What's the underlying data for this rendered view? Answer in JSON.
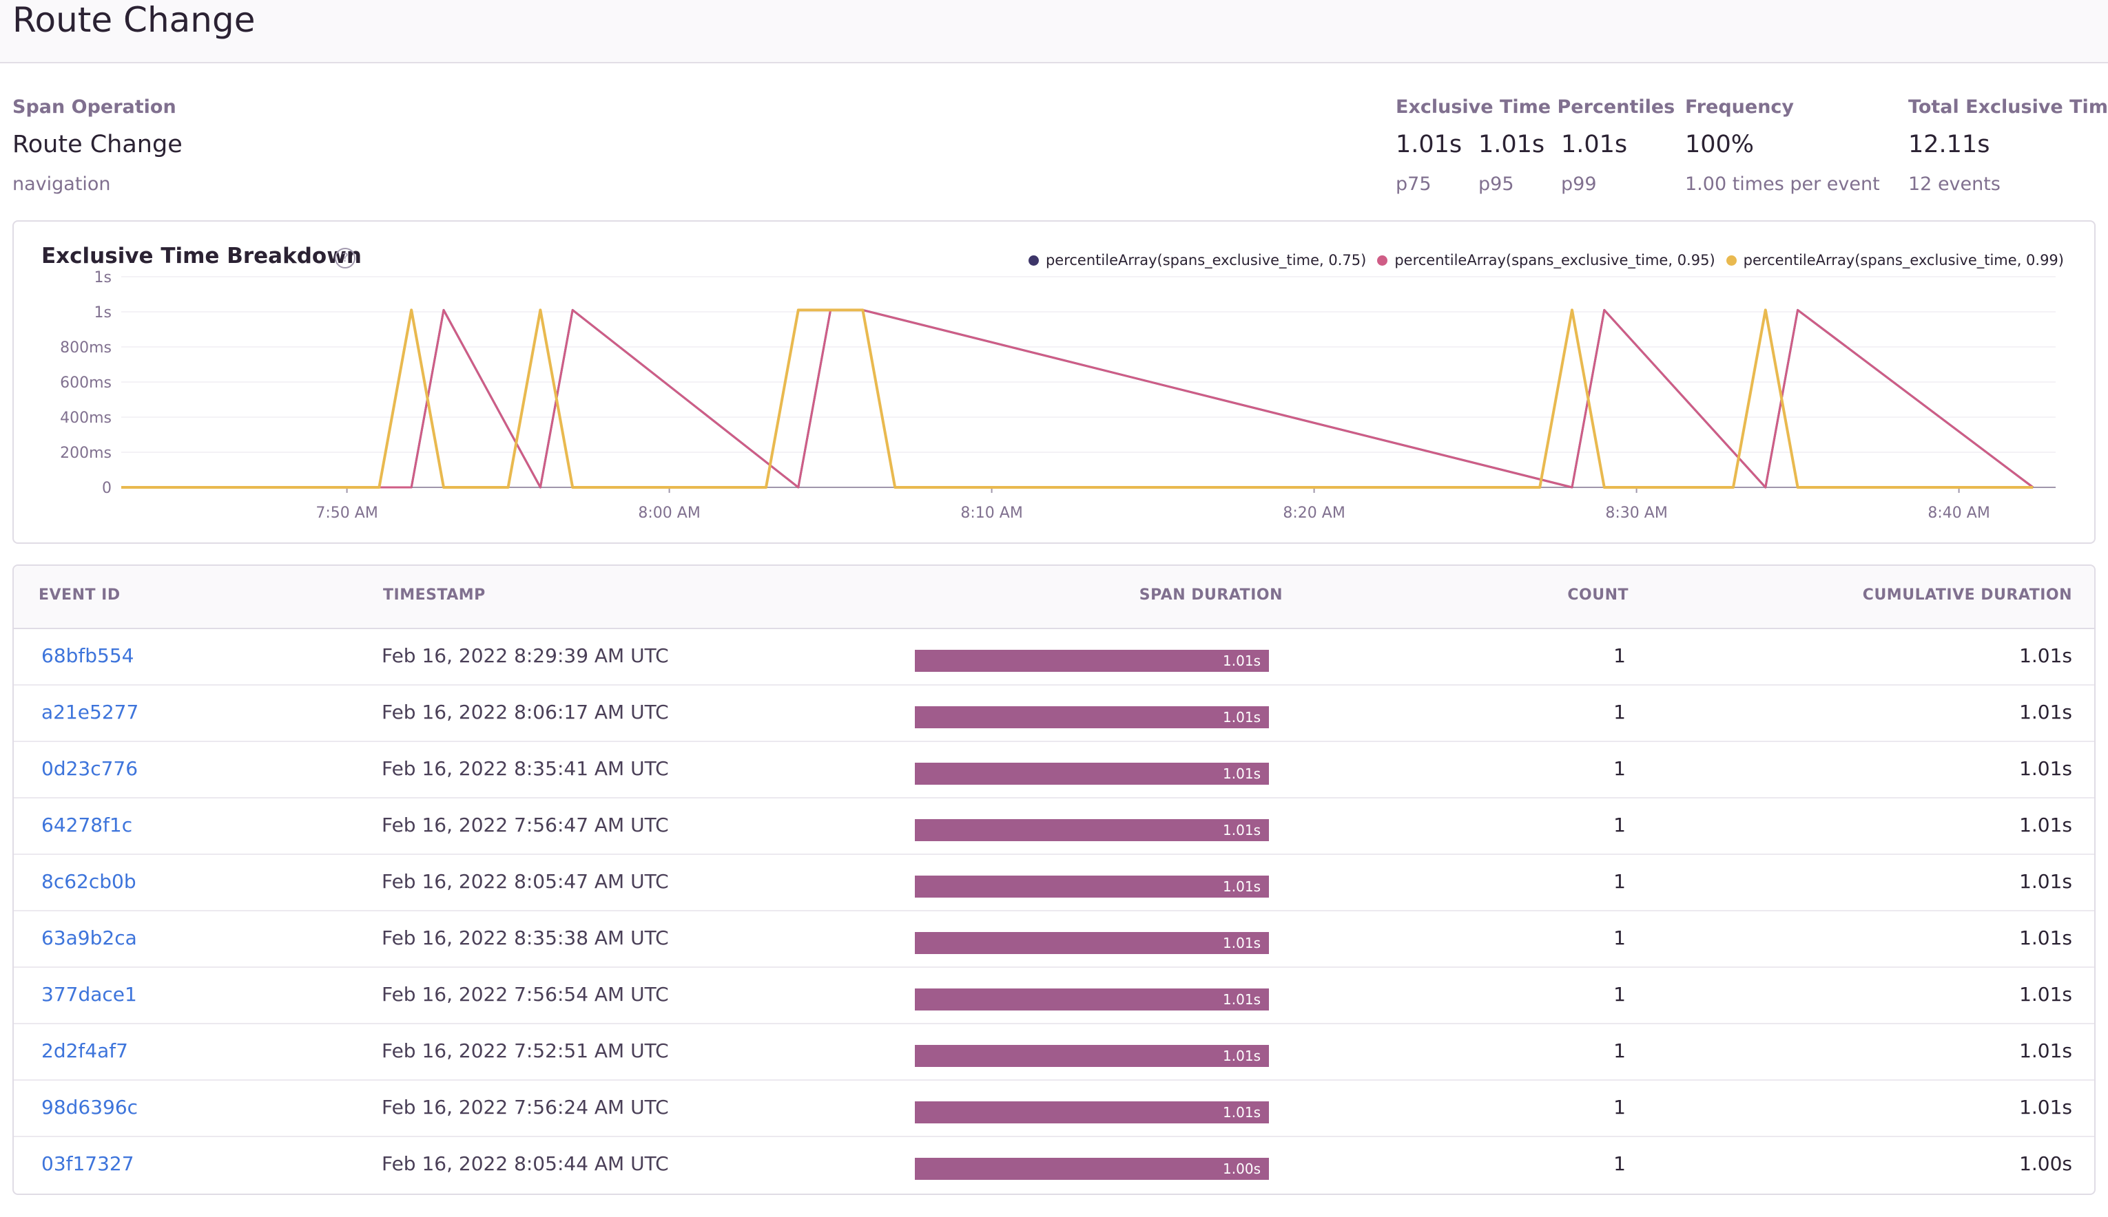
{
  "page": {
    "title": "Route Change"
  },
  "summary": {
    "span_operation": {
      "label": "Span Operation",
      "value": "Route Change",
      "sub": "navigation"
    },
    "percentiles": {
      "label": "Exclusive Time Percentiles",
      "items": [
        {
          "value": "1.01s",
          "name": "p75"
        },
        {
          "value": "1.01s",
          "name": "p95"
        },
        {
          "value": "1.01s",
          "name": "p99"
        }
      ]
    },
    "frequency": {
      "label": "Frequency",
      "value": "100%",
      "sub": "1.00 times per event"
    },
    "total": {
      "label": "Total Exclusive Time",
      "value": "12.11s",
      "sub": "12 events"
    }
  },
  "chart": {
    "title": "Exclusive Time Breakdown",
    "help_icon": "question-circle-icon"
  },
  "colors": {
    "p75": "#3d3669",
    "p95": "#cf5d86",
    "p99": "#e9b94f",
    "bar": "#a05c8c",
    "link": "#3d74db"
  },
  "chart_data": {
    "type": "line",
    "title": "Exclusive Time Breakdown",
    "xlabel": "",
    "ylabel": "",
    "x_tick_labels": [
      "7:50 AM",
      "8:00 AM",
      "8:10 AM",
      "8:20 AM",
      "8:30 AM",
      "8:40 AM"
    ],
    "y_tick_labels": [
      "0",
      "200ms",
      "400ms",
      "600ms",
      "800ms",
      "1s",
      "1s"
    ],
    "y_tick_values": [
      0,
      200,
      400,
      600,
      800,
      1000,
      1200
    ],
    "ylim": [
      0,
      1200
    ],
    "xlim_minutes": [
      43,
      103
    ],
    "legend": [
      "percentileArray(spans_exclusive_time, 0.75)",
      "percentileArray(spans_exclusive_time, 0.95)",
      "percentileArray(spans_exclusive_time, 0.99)"
    ],
    "series": [
      {
        "name": "percentileArray(spans_exclusive_time, 0.75)",
        "color": "#3d3669",
        "x": [
          43,
          52,
          53,
          56,
          57,
          64,
          65,
          66,
          88,
          89,
          94,
          95,
          102.3
        ],
        "y": [
          0,
          0,
          1010,
          0,
          1010,
          0,
          1010,
          1010,
          0,
          1010,
          0,
          1010,
          0
        ]
      },
      {
        "name": "percentileArray(spans_exclusive_time, 0.95)",
        "color": "#cf5d86",
        "x": [
          43,
          52,
          53,
          56,
          57,
          64,
          65,
          66,
          88,
          89,
          94,
          95,
          102.3
        ],
        "y": [
          0,
          0,
          1010,
          0,
          1010,
          0,
          1010,
          1010,
          0,
          1010,
          0,
          1010,
          0
        ]
      },
      {
        "name": "percentileArray(spans_exclusive_time, 0.99)",
        "color": "#e9b94f",
        "x": [
          43,
          51,
          52,
          53,
          55,
          56,
          57,
          63,
          64,
          65,
          66,
          67,
          87,
          88,
          89,
          93,
          94,
          95,
          102.3
        ],
        "y": [
          0,
          0,
          1010,
          0,
          0,
          1010,
          0,
          0,
          1010,
          1010,
          1010,
          0,
          0,
          1010,
          0,
          0,
          1010,
          0,
          0
        ]
      }
    ]
  },
  "table": {
    "headers": [
      "EVENT ID",
      "TIMESTAMP",
      "SPAN DURATION",
      "COUNT",
      "CUMULATIVE DURATION"
    ],
    "rows": [
      {
        "event_id": "68bfb554",
        "timestamp": "Feb 16, 2022 8:29:39 AM UTC",
        "span_duration": "1.01s",
        "bar_fraction": 1.0,
        "count": "1",
        "cumulative": "1.01s"
      },
      {
        "event_id": "a21e5277",
        "timestamp": "Feb 16, 2022 8:06:17 AM UTC",
        "span_duration": "1.01s",
        "bar_fraction": 1.0,
        "count": "1",
        "cumulative": "1.01s"
      },
      {
        "event_id": "0d23c776",
        "timestamp": "Feb 16, 2022 8:35:41 AM UTC",
        "span_duration": "1.01s",
        "bar_fraction": 1.0,
        "count": "1",
        "cumulative": "1.01s"
      },
      {
        "event_id": "64278f1c",
        "timestamp": "Feb 16, 2022 7:56:47 AM UTC",
        "span_duration": "1.01s",
        "bar_fraction": 1.0,
        "count": "1",
        "cumulative": "1.01s"
      },
      {
        "event_id": "8c62cb0b",
        "timestamp": "Feb 16, 2022 8:05:47 AM UTC",
        "span_duration": "1.01s",
        "bar_fraction": 1.0,
        "count": "1",
        "cumulative": "1.01s"
      },
      {
        "event_id": "63a9b2ca",
        "timestamp": "Feb 16, 2022 8:35:38 AM UTC",
        "span_duration": "1.01s",
        "bar_fraction": 1.0,
        "count": "1",
        "cumulative": "1.01s"
      },
      {
        "event_id": "377dace1",
        "timestamp": "Feb 16, 2022 7:56:54 AM UTC",
        "span_duration": "1.01s",
        "bar_fraction": 1.0,
        "count": "1",
        "cumulative": "1.01s"
      },
      {
        "event_id": "2d2f4af7",
        "timestamp": "Feb 16, 2022 7:52:51 AM UTC",
        "span_duration": "1.01s",
        "bar_fraction": 1.0,
        "count": "1",
        "cumulative": "1.01s"
      },
      {
        "event_id": "98d6396c",
        "timestamp": "Feb 16, 2022 7:56:24 AM UTC",
        "span_duration": "1.01s",
        "bar_fraction": 1.0,
        "count": "1",
        "cumulative": "1.01s"
      },
      {
        "event_id": "03f17327",
        "timestamp": "Feb 16, 2022 8:05:44 AM UTC",
        "span_duration": "1.00s",
        "bar_fraction": 1.0,
        "count": "1",
        "cumulative": "1.00s"
      }
    ]
  }
}
